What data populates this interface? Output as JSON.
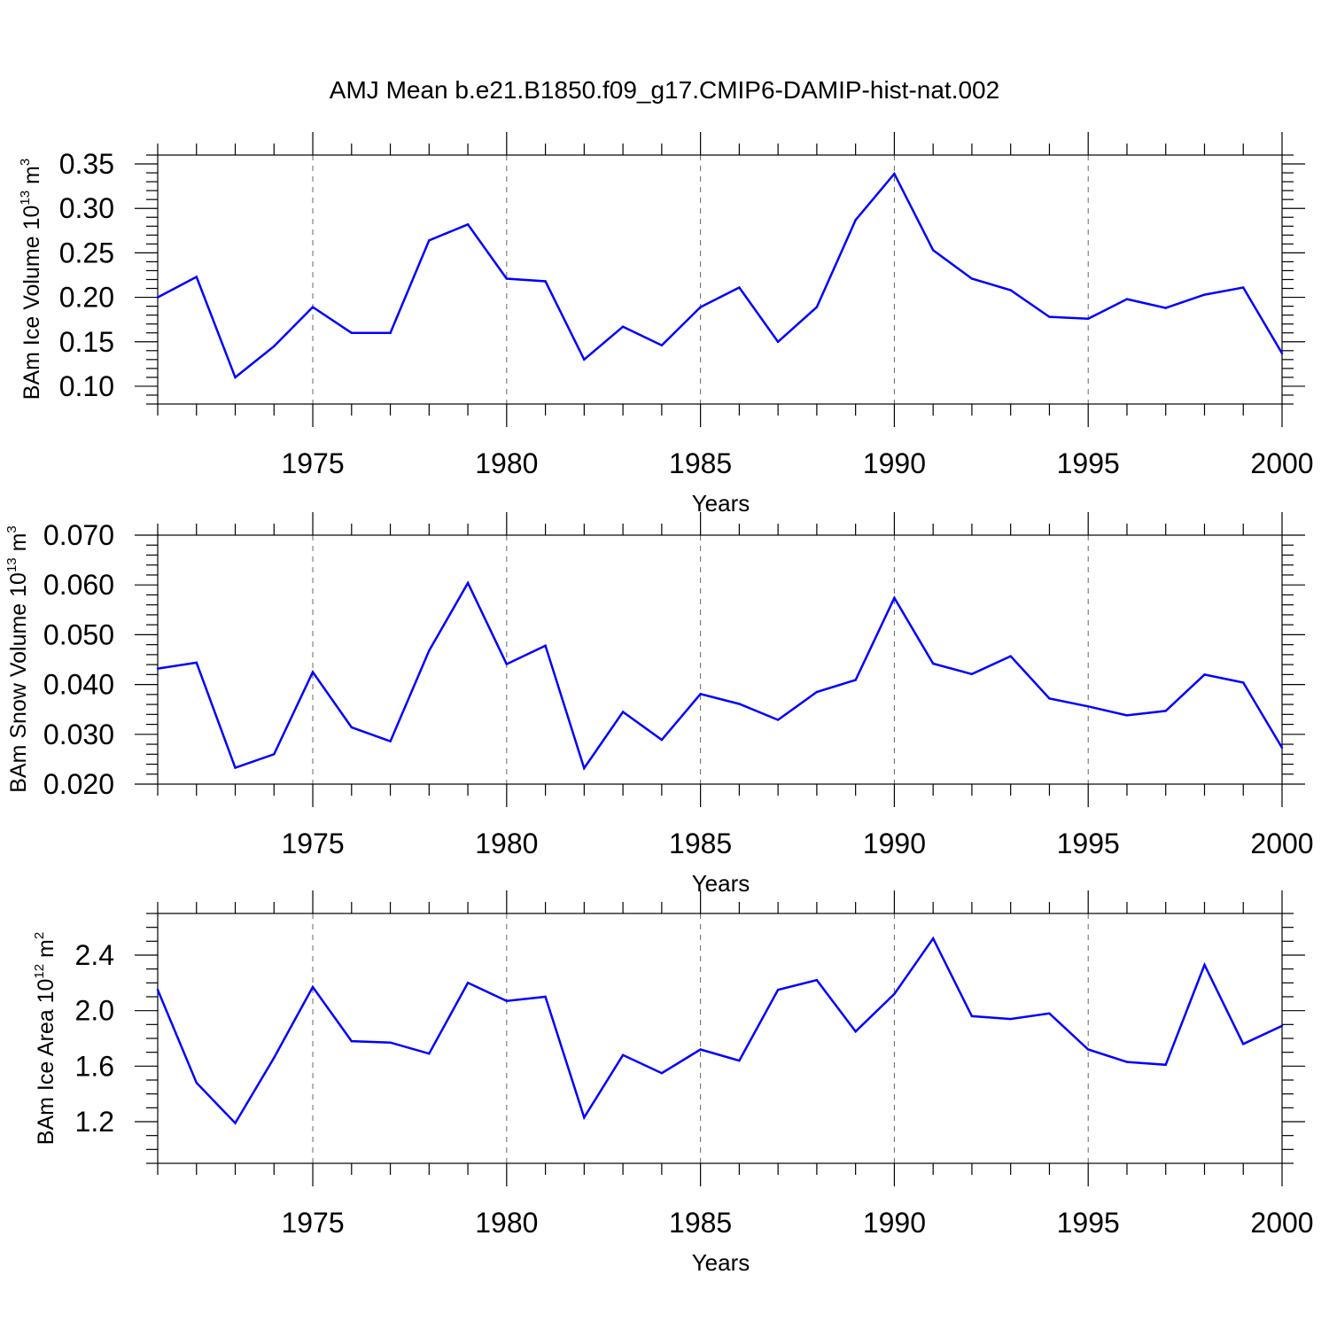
{
  "figure": {
    "title": "AMJ Mean b.e21.B1850.f09_g17.CMIP6-DAMIP-hist-nat.002"
  },
  "chart_data": [
    {
      "type": "line",
      "title": "AMJ Mean b.e21.B1850.f09_g17.CMIP6-DAMIP-hist-nat.002",
      "xlabel": "Years",
      "ylabel": {
        "text": "BAm Ice Volume 10",
        "exp": "13",
        "unit": " m",
        "unit_exp": "3"
      },
      "xlim": [
        1971,
        2000
      ],
      "ylim": [
        0.08,
        0.36
      ],
      "x_ticks": [
        1975,
        1980,
        1985,
        1990,
        1995,
        2000
      ],
      "y_ticks": [
        0.1,
        0.15,
        0.2,
        0.25,
        0.3,
        0.35
      ],
      "y_decimals": 2,
      "y_minor_step": 0.01,
      "grid": "vertical dashed at major x ticks",
      "line_color": "#0000ff",
      "x": [
        1971,
        1972,
        1973,
        1974,
        1975,
        1976,
        1977,
        1978,
        1979,
        1980,
        1981,
        1982,
        1983,
        1984,
        1985,
        1986,
        1987,
        1988,
        1989,
        1990,
        1991,
        1992,
        1993,
        1994,
        1995,
        1996,
        1997,
        1998,
        1999,
        2000
      ],
      "values": [
        0.2,
        0.223,
        0.11,
        0.145,
        0.189,
        0.16,
        0.16,
        0.264,
        0.282,
        0.221,
        0.218,
        0.13,
        0.167,
        0.146,
        0.189,
        0.211,
        0.15,
        0.189,
        0.287,
        0.339,
        0.253,
        0.221,
        0.208,
        0.178,
        0.176,
        0.198,
        0.188,
        0.203,
        0.211,
        0.137
      ]
    },
    {
      "type": "line",
      "xlabel": "Years",
      "ylabel": {
        "text": "BAm Snow Volume 10",
        "exp": "13",
        "unit": " m",
        "unit_exp": "3"
      },
      "xlim": [
        1971,
        2000
      ],
      "ylim": [
        0.02,
        0.07
      ],
      "x_ticks": [
        1975,
        1980,
        1985,
        1990,
        1995,
        2000
      ],
      "y_ticks": [
        0.02,
        0.03,
        0.04,
        0.05,
        0.06,
        0.07
      ],
      "y_decimals": 3,
      "y_minor_step": 0.002,
      "grid": "vertical dashed at major x ticks",
      "line_color": "#0000ff",
      "x": [
        1971,
        1972,
        1973,
        1974,
        1975,
        1976,
        1977,
        1978,
        1979,
        1980,
        1981,
        1982,
        1983,
        1984,
        1985,
        1986,
        1987,
        1988,
        1989,
        1990,
        1991,
        1992,
        1993,
        1994,
        1995,
        1996,
        1997,
        1998,
        1999,
        2000
      ],
      "values": [
        0.0432,
        0.0444,
        0.0233,
        0.026,
        0.0425,
        0.0314,
        0.0286,
        0.0468,
        0.0604,
        0.0441,
        0.0478,
        0.0232,
        0.0345,
        0.0289,
        0.0381,
        0.0361,
        0.0329,
        0.0385,
        0.0409,
        0.0574,
        0.0442,
        0.0421,
        0.0457,
        0.0372,
        0.0356,
        0.0338,
        0.0347,
        0.042,
        0.0404,
        0.0273
      ]
    },
    {
      "type": "line",
      "xlabel": "Years",
      "ylabel": {
        "text": "BAm Ice Area 10",
        "exp": "12",
        "unit": " m",
        "unit_exp": "2"
      },
      "xlim": [
        1971,
        2000
      ],
      "ylim": [
        0.9,
        2.7
      ],
      "x_ticks": [
        1975,
        1980,
        1985,
        1990,
        1995,
        2000
      ],
      "y_ticks": [
        1.2,
        1.6,
        2.0,
        2.4
      ],
      "y_decimals": 1,
      "y_minor_step": 0.1,
      "grid": "vertical dashed at major x ticks",
      "line_color": "#0000ff",
      "x": [
        1971,
        1972,
        1973,
        1974,
        1975,
        1976,
        1977,
        1978,
        1979,
        1980,
        1981,
        1982,
        1983,
        1984,
        1985,
        1986,
        1987,
        1988,
        1989,
        1990,
        1991,
        1992,
        1993,
        1994,
        1995,
        1996,
        1997,
        1998,
        1999,
        2000
      ],
      "values": [
        2.15,
        1.48,
        1.19,
        1.66,
        2.17,
        1.78,
        1.77,
        1.69,
        2.2,
        2.07,
        2.1,
        1.23,
        1.68,
        1.55,
        1.72,
        1.64,
        2.15,
        2.22,
        1.85,
        2.12,
        2.52,
        1.96,
        1.94,
        1.98,
        1.72,
        1.63,
        1.61,
        2.33,
        1.76,
        1.89
      ]
    }
  ]
}
